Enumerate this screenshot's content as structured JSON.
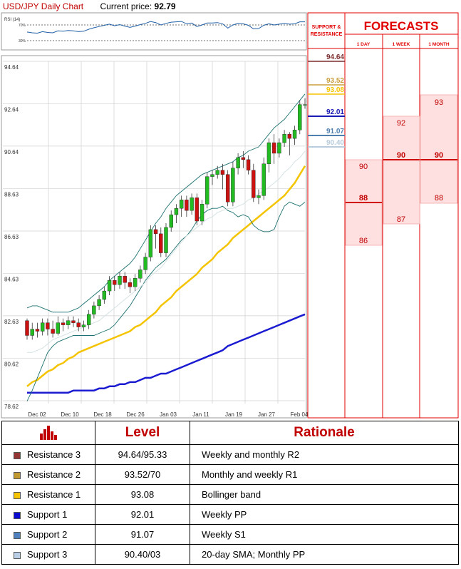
{
  "header": {
    "title": "USD/JPY Daily Chart",
    "current_price_label": "Current price:",
    "current_price": "92.79"
  },
  "rsi": {
    "label": "RSI (14)",
    "levels": [
      "70%",
      "30%"
    ]
  },
  "forecasts": {
    "title": "FORECASTS",
    "sr_title": "SUPPORT & RESISTANCE",
    "columns": [
      "1 DAY",
      "1 WEEK",
      "1 MONTH"
    ],
    "day": {
      "high": "90",
      "mid": "88",
      "low": "86"
    },
    "week": {
      "high": "92",
      "mid": "90",
      "low": "87"
    },
    "month": {
      "high": "93",
      "mid": "90",
      "low": "88"
    },
    "sr_levels": [
      {
        "label": "94.64",
        "value": 94.64,
        "color": "#7b2c2c"
      },
      {
        "label": "93.52",
        "value": 93.52,
        "color": "#c89f3c"
      },
      {
        "label": "93.08",
        "value": 93.08,
        "color": "#f5c400"
      },
      {
        "label": "92.01",
        "value": 92.01,
        "color": "#1a1ab4"
      },
      {
        "label": "91.07",
        "value": 91.07,
        "color": "#4f7fae"
      },
      {
        "label": "90.40",
        "value": 90.4,
        "color": "#b8ccdd"
      }
    ]
  },
  "chart_data": {
    "type": "line",
    "title": "USD/JPY Daily Chart",
    "ylim": [
      78.2,
      95.0
    ],
    "y_ticks": [
      "94.64",
      "92.64",
      "90.64",
      "88.63",
      "86.63",
      "84.63",
      "82.63",
      "80.62",
      "78.62"
    ],
    "x_ticks": [
      "Dec 02",
      "Dec 10",
      "Dec 18",
      "Dec 26",
      "Jan 03",
      "Jan 11",
      "Jan 19",
      "Jan 27",
      "Feb 04"
    ],
    "grid": true,
    "candles": [
      [
        82.4,
        81.7,
        82.5,
        81.5
      ],
      [
        81.7,
        82.0,
        82.3,
        81.5
      ],
      [
        82.0,
        81.9,
        82.3,
        81.6
      ],
      [
        81.9,
        82.3,
        82.5,
        81.7
      ],
      [
        82.3,
        82.0,
        82.5,
        81.7
      ],
      [
        82.0,
        81.8,
        82.4,
        81.6
      ],
      [
        81.8,
        82.3,
        82.6,
        81.7
      ],
      [
        82.3,
        82.2,
        82.5,
        81.9
      ],
      [
        82.2,
        82.4,
        82.6,
        82.0
      ],
      [
        82.4,
        82.3,
        82.6,
        82.1
      ],
      [
        82.3,
        82.1,
        82.5,
        81.9
      ],
      [
        82.1,
        82.2,
        82.4,
        81.9
      ],
      [
        82.2,
        82.7,
        82.9,
        82.0
      ],
      [
        82.7,
        83.1,
        83.3,
        82.5
      ],
      [
        83.1,
        83.4,
        83.6,
        82.9
      ],
      [
        83.4,
        83.8,
        84.0,
        83.2
      ],
      [
        83.8,
        84.3,
        84.5,
        83.6
      ],
      [
        84.3,
        84.1,
        84.5,
        83.8
      ],
      [
        84.1,
        84.5,
        84.7,
        83.9
      ],
      [
        84.5,
        84.2,
        84.7,
        83.9
      ],
      [
        84.2,
        84.0,
        84.4,
        83.7
      ],
      [
        84.0,
        84.4,
        84.6,
        83.8
      ],
      [
        84.4,
        84.8,
        85.0,
        84.2
      ],
      [
        84.8,
        85.4,
        85.6,
        84.6
      ],
      [
        85.4,
        86.7,
        86.9,
        85.2
      ],
      [
        86.7,
        86.5,
        86.9,
        85.8
      ],
      [
        86.5,
        85.6,
        86.8,
        85.4
      ],
      [
        85.6,
        86.8,
        87.0,
        85.4
      ],
      [
        86.8,
        87.4,
        87.6,
        86.6
      ],
      [
        87.4,
        87.7,
        87.9,
        87.0
      ],
      [
        87.7,
        88.1,
        88.3,
        87.3
      ],
      [
        88.1,
        87.6,
        88.3,
        87.3
      ],
      [
        87.6,
        88.2,
        88.4,
        87.4
      ],
      [
        88.2,
        87.1,
        88.4,
        86.9
      ],
      [
        87.1,
        87.9,
        88.1,
        86.9
      ],
      [
        87.9,
        89.2,
        89.4,
        87.7
      ],
      [
        89.2,
        89.3,
        89.5,
        88.8
      ],
      [
        89.3,
        89.5,
        89.7,
        89.1
      ],
      [
        89.5,
        89.3,
        89.8,
        88.6
      ],
      [
        89.3,
        88.0,
        89.5,
        87.8
      ],
      [
        88.0,
        89.6,
        89.9,
        87.8
      ],
      [
        89.6,
        90.1,
        90.3,
        89.3
      ],
      [
        90.1,
        90.0,
        90.4,
        89.6
      ],
      [
        90.0,
        89.5,
        90.2,
        89.3
      ],
      [
        89.5,
        88.2,
        89.8,
        88.0
      ],
      [
        88.2,
        88.3,
        88.6,
        87.9
      ],
      [
        88.3,
        89.8,
        90.1,
        88.1
      ],
      [
        89.8,
        90.8,
        91.0,
        89.4
      ],
      [
        90.8,
        90.3,
        91.2,
        89.8
      ],
      [
        90.3,
        90.8,
        91.0,
        90.1
      ],
      [
        90.8,
        91.2,
        91.4,
        90.6
      ],
      [
        91.2,
        91.0,
        91.3,
        90.2
      ],
      [
        91.0,
        91.4,
        91.6,
        90.7
      ],
      [
        91.4,
        92.6,
        92.8,
        91.2
      ],
      [
        92.6,
        92.6,
        92.9,
        92.4
      ]
    ],
    "bollinger_upper": [
      83.0,
      83.1,
      83.1,
      83.0,
      82.9,
      82.8,
      82.8,
      82.8,
      82.8,
      82.9,
      83.0,
      83.2,
      83.4,
      83.6,
      83.8,
      84.0,
      84.3,
      84.5,
      84.7,
      84.9,
      85.1,
      85.4,
      85.8,
      86.2,
      86.6,
      87.0,
      87.3,
      87.7,
      88.0,
      88.3,
      88.5,
      88.7,
      88.9,
      89.1,
      89.3,
      89.4,
      89.5,
      89.6,
      89.7,
      89.8,
      89.9,
      90.1,
      90.2,
      90.4,
      90.5,
      90.6,
      90.9,
      91.2,
      91.5,
      91.7,
      91.9,
      92.2,
      92.5,
      92.8,
      93.1
    ],
    "bollinger_lower": [
      78.6,
      79.1,
      79.7,
      80.3,
      80.9,
      81.2,
      81.4,
      81.5,
      81.6,
      81.7,
      81.7,
      81.7,
      81.7,
      81.7,
      81.8,
      81.9,
      82.0,
      82.2,
      82.5,
      82.8,
      83.1,
      83.5,
      83.9,
      84.3,
      84.6,
      84.9,
      85.1,
      85.3,
      85.6,
      85.9,
      86.2,
      86.4,
      86.7,
      87.1,
      87.4,
      87.6,
      87.7,
      87.7,
      87.8,
      87.6,
      87.5,
      87.3,
      87.4,
      87.3,
      86.9,
      86.7,
      86.6,
      86.6,
      86.7,
      87.3,
      87.8,
      88.0,
      87.9,
      87.8,
      88.0
    ],
    "sma_20": [
      80.9,
      80.9,
      81.0,
      81.1,
      81.3,
      81.5,
      81.6,
      81.7,
      81.8,
      81.9,
      82.0,
      82.1,
      82.2,
      82.3,
      82.4,
      82.6,
      82.8,
      83.0,
      83.2,
      83.4,
      83.6,
      83.8,
      84.0,
      84.2,
      84.5,
      84.7,
      84.9,
      85.2,
      85.5,
      85.8,
      86.1,
      86.4,
      86.6,
      86.8,
      87.0,
      87.2,
      87.3,
      87.5,
      87.6,
      87.7,
      87.7,
      87.8,
      87.9,
      88.1,
      88.2,
      88.4,
      88.5,
      88.7,
      88.9,
      89.1,
      89.4,
      89.6,
      89.9,
      90.1,
      90.4
    ],
    "ma_yellow": [
      79.3,
      79.5,
      79.6,
      79.8,
      80.0,
      80.1,
      80.3,
      80.4,
      80.6,
      80.7,
      80.9,
      81.0,
      81.1,
      81.2,
      81.3,
      81.4,
      81.5,
      81.6,
      81.7,
      81.8,
      81.9,
      82.1,
      82.2,
      82.4,
      82.6,
      82.8,
      83.1,
      83.3,
      83.5,
      83.8,
      84.0,
      84.2,
      84.4,
      84.6,
      84.9,
      85.1,
      85.3,
      85.6,
      85.8,
      86.0,
      86.3,
      86.5,
      86.7,
      86.9,
      87.1,
      87.3,
      87.5,
      87.7,
      87.9,
      88.1,
      88.3,
      88.6,
      88.9,
      89.3,
      89.7
    ],
    "ma_blue": [
      79.0,
      79.0,
      79.0,
      79.0,
      79.0,
      79.0,
      79.0,
      79.0,
      79.0,
      79.1,
      79.1,
      79.1,
      79.1,
      79.1,
      79.2,
      79.2,
      79.3,
      79.3,
      79.4,
      79.4,
      79.5,
      79.5,
      79.6,
      79.7,
      79.7,
      79.8,
      79.9,
      79.9,
      80.0,
      80.1,
      80.2,
      80.3,
      80.4,
      80.5,
      80.6,
      80.7,
      80.8,
      80.9,
      81.0,
      81.2,
      81.3,
      81.4,
      81.5,
      81.6,
      81.7,
      81.8,
      81.9,
      82.0,
      82.1,
      82.2,
      82.3,
      82.4,
      82.5,
      82.6,
      82.7
    ],
    "rsi_values": [
      52,
      50,
      49,
      53,
      51,
      50,
      55,
      54,
      56,
      55,
      53,
      54,
      59,
      63,
      66,
      69,
      72,
      68,
      71,
      67,
      64,
      67,
      71,
      74,
      79,
      76,
      70,
      74,
      77,
      78,
      79,
      73,
      75,
      66,
      70,
      75,
      75,
      76,
      73,
      62,
      70,
      74,
      73,
      69,
      60,
      61,
      69,
      73,
      70,
      72,
      74,
      72,
      73,
      78,
      78
    ]
  },
  "table": {
    "headers": [
      "Level",
      "Rationale"
    ],
    "rows": [
      {
        "name": "Resistance 3",
        "level": "94.64/95.33",
        "rationale": "Weekly and monthly R2",
        "color": "#943634"
      },
      {
        "name": "Resistance 2",
        "level": "93.52/70",
        "rationale": "Monthly and weekly R1",
        "color": "#c09a30"
      },
      {
        "name": "Resistance 1",
        "level": "93.08",
        "rationale": "Bollinger band",
        "color": "#f5c400"
      },
      {
        "name": "Support 1",
        "level": "92.01",
        "rationale": "Weekly PP",
        "color": "#0a0ad0"
      },
      {
        "name": "Support 2",
        "level": "91.07",
        "rationale": "Weekly S1",
        "color": "#4f81bd"
      },
      {
        "name": "Support 3",
        "level": "90.40/03",
        "rationale": "20-day SMA; Monthly PP",
        "color": "#b9cde5"
      }
    ]
  }
}
